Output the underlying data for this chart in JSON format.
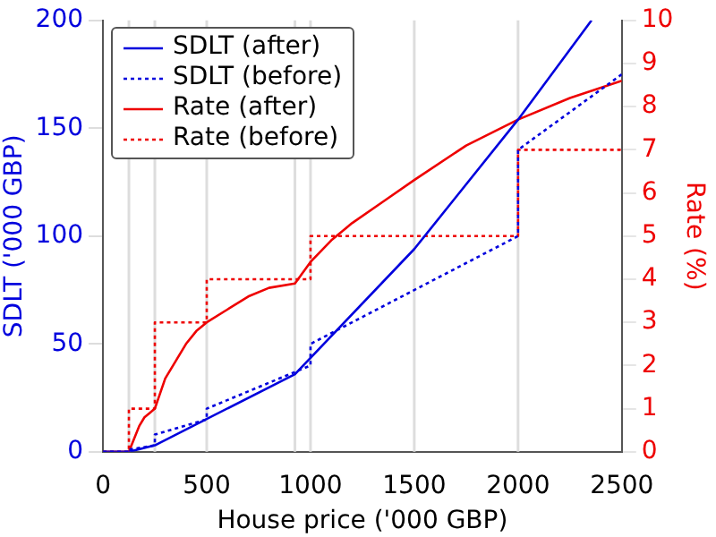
{
  "chart_data": {
    "type": "line",
    "xlabel": "House price ('000 GBP)",
    "ylabel": "SDLT ('000 GBP)",
    "y2label": "Rate (%)",
    "xlim": [
      0,
      2500
    ],
    "xticks": [
      0,
      500,
      1000,
      1500,
      2000,
      2500
    ],
    "ylim": [
      0,
      200
    ],
    "yticks": [
      0,
      50,
      100,
      150,
      200
    ],
    "y2lim": [
      0,
      10
    ],
    "y2ticks": [
      0,
      1,
      2,
      3,
      4,
      5,
      6,
      7,
      8,
      9,
      10
    ],
    "legend": "top left",
    "marker": "none",
    "ref_lines": [
      {
        "axis": "x",
        "value": 125,
        "color": "#dddddd"
      },
      {
        "axis": "x",
        "value": 250,
        "color": "#dddddd"
      },
      {
        "axis": "x",
        "value": 500,
        "color": "#dddddd"
      },
      {
        "axis": "x",
        "value": 925,
        "color": "#dddddd"
      },
      {
        "axis": "x",
        "value": 1000,
        "color": "#dddddd"
      },
      {
        "axis": "x",
        "value": 1500,
        "color": "#dddddd"
      },
      {
        "axis": "x",
        "value": 2000,
        "color": "#dddddd"
      }
    ],
    "series": [
      {
        "name": "SDLT (after)",
        "color": "#0000dd",
        "line_style": "solid",
        "x": [
          0,
          125,
          250,
          925,
          1500,
          2000,
          2354
        ],
        "values": [
          0,
          0,
          3,
          36,
          94,
          154,
          200
        ]
      },
      {
        "name": "SDLT (before)",
        "color": "#0000dd",
        "line_style": "dotted",
        "x": [
          0,
          125,
          125,
          250,
          250,
          500,
          500,
          1000,
          1000,
          2000,
          2000,
          2500
        ],
        "values": [
          0,
          0,
          1,
          3,
          8,
          15,
          20,
          40,
          50,
          100,
          140,
          175
        ]
      },
      {
        "name": "Rate (after)",
        "color": "#ee0000",
        "line_style": "solid",
        "axis": "y2",
        "x": [
          0,
          125,
          150,
          175,
          200,
          225,
          250,
          300,
          350,
          400,
          450,
          500,
          600,
          700,
          800,
          925,
          1000,
          1100,
          1200,
          1350,
          1500,
          1750,
          2000,
          2250,
          2500
        ],
        "values": [
          0,
          0,
          0.3,
          0.6,
          0.8,
          0.9,
          1,
          1.7,
          2.1,
          2.5,
          2.8,
          3,
          3.3,
          3.6,
          3.8,
          3.9,
          4.4,
          4.9,
          5.3,
          5.8,
          6.3,
          7.1,
          7.7,
          8.2,
          8.6
        ]
      },
      {
        "name": "Rate (before)",
        "type": "step",
        "color": "#ee0000",
        "line_style": "dotted",
        "axis": "y2",
        "x": [
          0,
          125,
          250,
          500,
          1000,
          2000,
          2500
        ],
        "values": [
          0,
          1,
          3,
          4,
          5,
          7,
          7
        ]
      }
    ]
  }
}
